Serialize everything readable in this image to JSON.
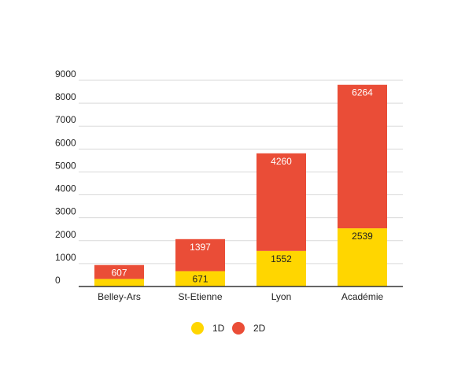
{
  "chart_data": {
    "type": "bar",
    "stacked": true,
    "categories": [
      "Belley-Ars",
      "St-Etienne",
      "Lyon",
      "Académie"
    ],
    "series": [
      {
        "name": "1D",
        "values": [
          330,
          671,
          1552,
          2539
        ],
        "color": "#FFD600",
        "label_color": "#222222"
      },
      {
        "name": "2D",
        "values": [
          607,
          1397,
          4260,
          6264
        ],
        "color": "#EA4D37",
        "label_color": "#ffffff"
      }
    ],
    "data_labels": {
      "1D": [
        "",
        "671",
        "1552",
        "2539"
      ],
      "2D": [
        "607",
        "1397",
        "4260",
        "6264"
      ]
    },
    "y_ticks": [
      0,
      1000,
      2000,
      3000,
      4000,
      5000,
      6000,
      7000,
      8000,
      9000
    ],
    "ylim": [
      0,
      9000
    ],
    "grid": true,
    "legend_position": "bottom",
    "title": "",
    "xlabel": "",
    "ylabel": ""
  }
}
